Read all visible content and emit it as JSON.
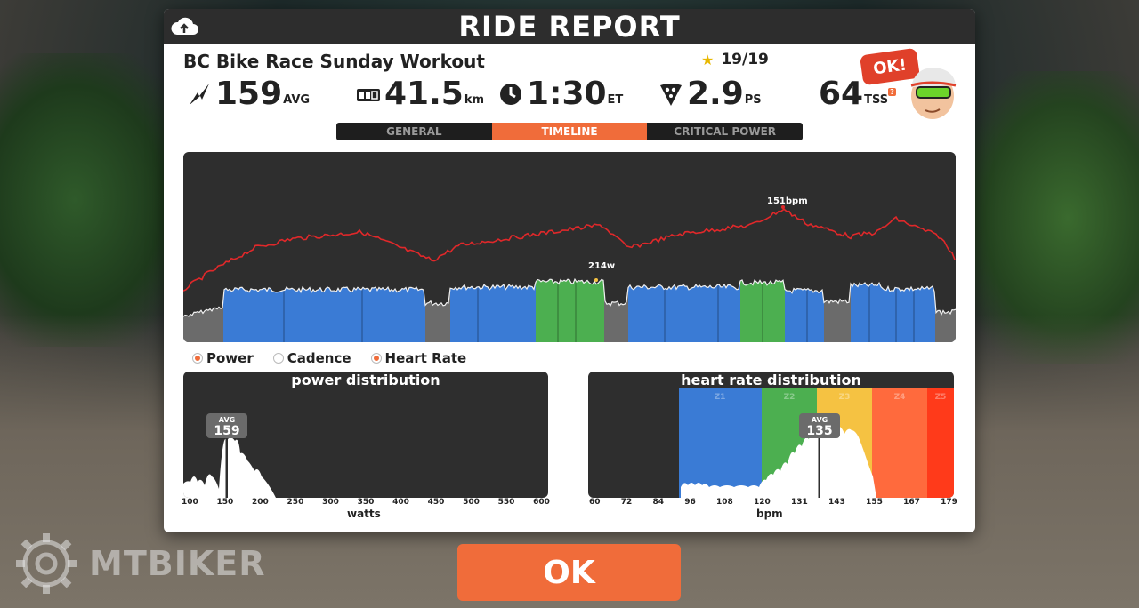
{
  "dialog": {
    "title": "RIDE REPORT",
    "workout_name": "BC Bike Race Sunday Workout",
    "stars": "19/19",
    "ok_bubble": "OK!"
  },
  "stats": {
    "power": {
      "value": "159",
      "unit": "AVG",
      "icon": "lightning-icon"
    },
    "distance": {
      "value": "41.5",
      "unit": "km",
      "icon": "odometer-icon"
    },
    "time": {
      "value": "1:30",
      "unit": "ET",
      "icon": "clock-icon"
    },
    "pizza": {
      "value": "2.9",
      "unit": "PS",
      "icon": "pizza-icon"
    },
    "tss": {
      "value": "64",
      "unit": "TSS",
      "superscript": "?"
    }
  },
  "tabs": [
    {
      "label": "GENERAL",
      "active": false
    },
    {
      "label": "TIMELINE",
      "active": true
    },
    {
      "label": "CRITICAL POWER",
      "active": false
    }
  ],
  "timeline": {
    "hr_peak_label": "151bpm",
    "power_peak_label": "214w",
    "colors": {
      "zone_gray": "#6b6b6b",
      "zone_blue": "#3a7bd5",
      "zone_green": "#4caf50",
      "hr_line": "#e0282a"
    }
  },
  "legend": [
    {
      "label": "Power",
      "on": true
    },
    {
      "label": "Cadence",
      "on": false
    },
    {
      "label": "Heart Rate",
      "on": true
    }
  ],
  "power_distribution": {
    "title": "power distribution",
    "avg_label": "AVG",
    "avg_value": "159",
    "ticks": [
      "100",
      "150",
      "200",
      "250",
      "300",
      "350",
      "400",
      "450",
      "500",
      "550",
      "600"
    ],
    "axis_label": "watts"
  },
  "hr_distribution": {
    "title": "heart rate distribution",
    "avg_label": "AVG",
    "avg_value": "135",
    "zones": [
      "Z1",
      "Z2",
      "Z3",
      "Z4",
      "Z5"
    ],
    "zone_colors": [
      "#3a7bd5",
      "#4caf50",
      "#f5c242",
      "#ff6a3d",
      "#ff3a1a"
    ],
    "ticks": [
      "60",
      "72",
      "84",
      "96",
      "108",
      "120",
      "131",
      "143",
      "155",
      "167",
      "179"
    ],
    "axis_label": "bpm"
  },
  "ok_button": "OK",
  "watermark": "MTBIKER"
}
